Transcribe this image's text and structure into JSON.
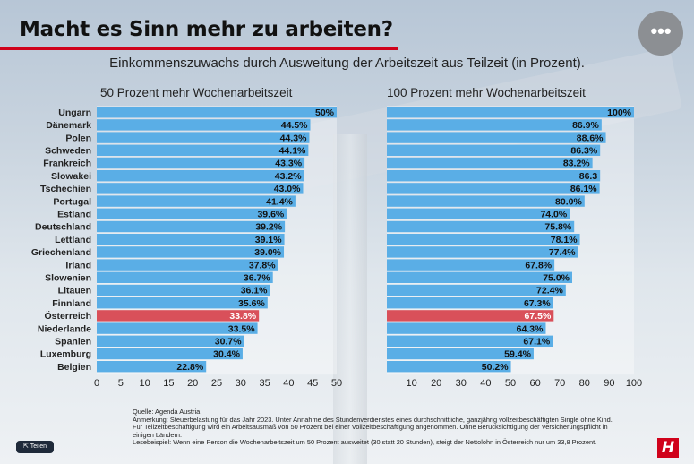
{
  "title": "Macht es Sinn mehr zu arbeiten?",
  "subtitle": "Einkommenszuwachs durch Ausweitung der Arbeitszeit aus Teilzeit (in Prozent).",
  "menu_label": "•••",
  "share_label": "Teilen",
  "logo_text": "H",
  "notes": {
    "source": "Quelle: Agenda Austria",
    "remark": "Anmerkung: Steuerbelastung für das Jahr 2023. Unter Annahme des Stundenverdienstes eines durchschnittliche, ganzjährig vollzeitbeschäftigten Single ohne Kind. Für Teilzeitbeschäftigung wird ein Arbeitsausmaß von 50 Prozent bei einer Vollzeitbeschäftigung angenommen. Ohne Berücksichtigung der Versicherungspflicht in einigen Ländern.",
    "example": "Lesebeispiel: Wenn eine Person die Wochenarbeitszeit um 50 Prozent ausweitet (30 statt 20 Stunden), steigt der Nettolohn in Österreich nur um 33,8 Prozent."
  },
  "colors": {
    "bar": "#5aaee6",
    "highlight": "#d9505a",
    "accent": "#d0021b"
  },
  "chart_data": [
    {
      "type": "bar",
      "orientation": "horizontal",
      "title": "50 Prozent mehr Wochenarbeitszeit",
      "categories": [
        "Ungarn",
        "Dänemark",
        "Polen",
        "Schweden",
        "Frankreich",
        "Slowakei",
        "Tschechien",
        "Portugal",
        "Estland",
        "Deutschland",
        "Lettland",
        "Griechenland",
        "Irland",
        "Slowenien",
        "Litauen",
        "Finnland",
        "Österreich",
        "Niederlande",
        "Spanien",
        "Luxemburg",
        "Belgien"
      ],
      "values": [
        50,
        44.5,
        44.3,
        44.1,
        43.3,
        43.2,
        43.0,
        41.4,
        39.6,
        39.2,
        39.1,
        39.0,
        37.8,
        36.7,
        36.1,
        35.6,
        33.8,
        33.5,
        30.7,
        30.4,
        22.8
      ],
      "value_labels": [
        "50%",
        "44.5%",
        "44.3%",
        "44.1%",
        "43.3%",
        "43.2%",
        "43.0%",
        "41.4%",
        "39.6%",
        "39.2%",
        "39.1%",
        "39.0%",
        "37.8%",
        "36.7%",
        "36.1%",
        "35.6%",
        "33.8%",
        "33.5%",
        "30.7%",
        "30.4%",
        "22.8%"
      ],
      "highlight": "Österreich",
      "xlim": [
        0,
        50
      ],
      "xticks": [
        "0",
        "5",
        "10",
        "15",
        "20",
        "25",
        "30",
        "35",
        "40",
        "45",
        "50"
      ]
    },
    {
      "type": "bar",
      "orientation": "horizontal",
      "title": "100 Prozent mehr Wochenarbeitszeit",
      "categories": [
        "Ungarn",
        "Dänemark",
        "Polen",
        "Schweden",
        "Frankreich",
        "Slowakei",
        "Tschechien",
        "Portugal",
        "Estland",
        "Deutschland",
        "Lettland",
        "Griechenland",
        "Irland",
        "Slowenien",
        "Litauen",
        "Finnland",
        "Österreich",
        "Niederlande",
        "Spanien",
        "Luxemburg",
        "Belgien"
      ],
      "values": [
        100,
        86.9,
        88.6,
        86.3,
        83.2,
        86.3,
        86.1,
        80.0,
        74.0,
        75.8,
        78.1,
        77.4,
        67.8,
        75.0,
        72.4,
        67.3,
        67.5,
        64.3,
        67.1,
        59.4,
        50.2
      ],
      "value_labels": [
        "100%",
        "86.9%",
        "88.6%",
        "86.3%",
        "83.2%",
        "86.3",
        "86.1%",
        "80.0%",
        "74.0%",
        "75.8%",
        "78.1%",
        "77.4%",
        "67.8%",
        "75.0%",
        "72.4%",
        "67.3%",
        "67.5%",
        "64.3%",
        "67.1%",
        "59.4%",
        "50.2%"
      ],
      "highlight": "Österreich",
      "xlim": [
        0,
        100
      ],
      "xticks": [
        "10",
        "20",
        "30",
        "40",
        "50",
        "60",
        "70",
        "80",
        "90",
        "100"
      ]
    }
  ]
}
